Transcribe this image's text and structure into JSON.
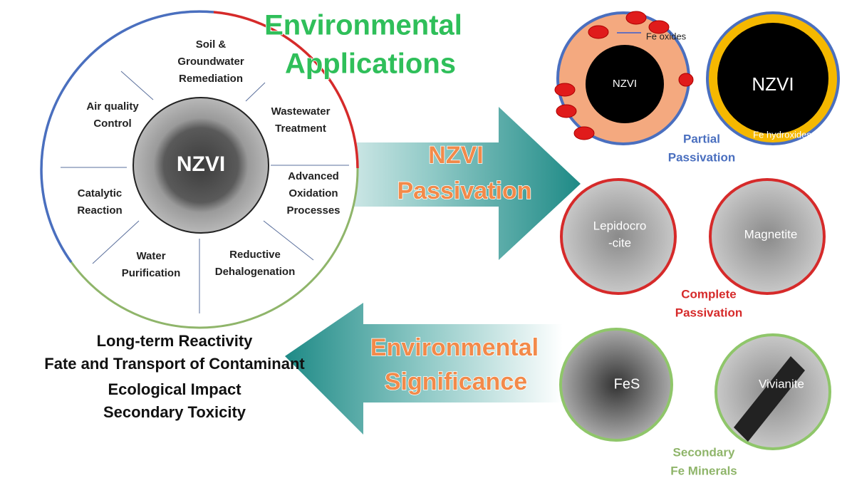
{
  "applications": {
    "title": [
      "Environmental",
      "Applications"
    ],
    "core": "NZVI",
    "segments": [
      {
        "lines": [
          "Soil &",
          "Groundwater",
          "Remediation"
        ]
      },
      {
        "lines": [
          "Wastewater",
          "Treatment"
        ]
      },
      {
        "lines": [
          "Advanced",
          "Oxidation",
          "Processes"
        ]
      },
      {
        "lines": [
          "Reductive",
          "Dehalogenation"
        ]
      },
      {
        "lines": [
          "Water",
          "Purification"
        ]
      },
      {
        "lines": [
          "Catalytic",
          "Reaction"
        ]
      },
      {
        "lines": [
          "Air quality",
          "Control"
        ]
      }
    ]
  },
  "passivation_arrow": [
    "NZVI",
    "Passivation"
  ],
  "significance_arrow": [
    "Environmental",
    "Significance"
  ],
  "significance_items": [
    "Long-term Reactivity",
    "Fate and Transport of Contaminant",
    "Ecological Impact",
    "Secondary Toxicity"
  ],
  "partial": {
    "label": [
      "Partial",
      "Passivation"
    ],
    "left_core": "NZVI",
    "left_note": "Fe oxides",
    "right_core": "NZVI",
    "right_note": "Fe hydroxides"
  },
  "complete": {
    "label": [
      "Complete",
      "Passivation"
    ],
    "left": [
      "Lepidocro",
      "-cite"
    ],
    "right": "Magnetite"
  },
  "secondary": {
    "label": [
      "Secondary",
      "Fe Minerals"
    ],
    "left": "FeS",
    "right": "Vivianite"
  }
}
